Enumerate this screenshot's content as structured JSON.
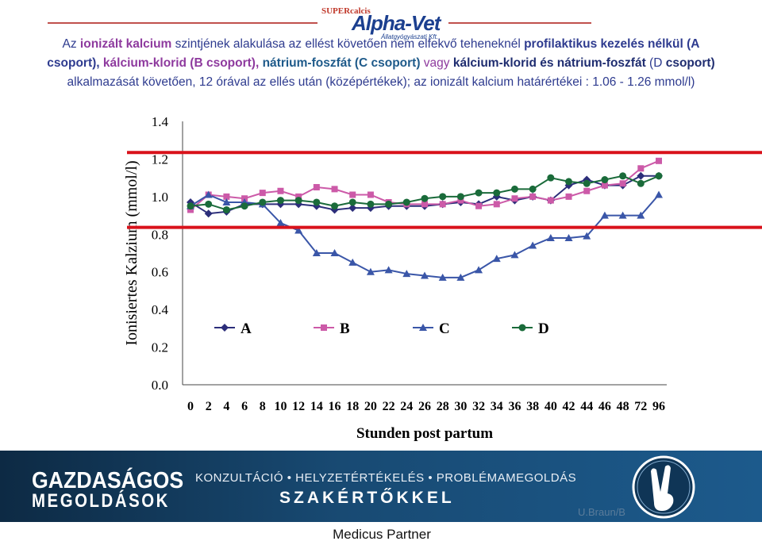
{
  "logo": {
    "small": "SUPERcalcis",
    "main": "Alpha-Vet",
    "sub": "Állatgyógyászati Kft."
  },
  "heading": {
    "p1": "Az ",
    "p2": "ionizált kalcium",
    "p3": " szintjének alakulása az ellést követően nem elfekvő teheneknél ",
    "p4": "profilaktikus kezelés nélkül (A csoport), ",
    "p5": "kálcium-klorid (B csoport), ",
    "p6": "nátrium-foszfát (C csoport)",
    "p7": " vagy ",
    "p8": "kálcium-klorid és nátrium-foszfát",
    "p9": " (D ",
    "p10": "csoport)",
    "p11": " alkalmazását követően, 12 órával az ellés után (középértékek); az ionizált kalcium határértékei : 1.06 - 1.26 mmol/l)"
  },
  "chart_data": {
    "type": "line",
    "title": "",
    "xlabel": "Stunden post partum",
    "ylabel": "Ionisiertes Kalzium (mmol/l)",
    "categories": [
      "0",
      "2",
      "4",
      "6",
      "8",
      "10",
      "12",
      "14",
      "16",
      "18",
      "20",
      "22",
      "24",
      "26",
      "28",
      "30",
      "32",
      "34",
      "36",
      "38",
      "40",
      "42",
      "44",
      "46",
      "48",
      "72",
      "96"
    ],
    "ylim": [
      0,
      1.4
    ],
    "yticks": [
      "0.0",
      "0.2",
      "0.4",
      "0.6",
      "0.8",
      "1.0",
      "1.2",
      "1.4"
    ],
    "grid": false,
    "legend_position": "inside-bottom",
    "reference_lines": [
      1.06,
      1.26
    ],
    "reference_color": "#d9121b",
    "series": [
      {
        "name": "A",
        "color": "#2c2e7a",
        "marker": "diamond",
        "values": [
          0.97,
          0.91,
          0.92,
          0.96,
          0.96,
          0.96,
          0.96,
          0.95,
          0.93,
          0.94,
          0.94,
          0.95,
          0.95,
          0.95,
          0.96,
          0.97,
          0.96,
          1.0,
          0.98,
          1.0,
          0.98,
          1.06,
          1.09,
          1.06,
          1.06,
          1.11,
          1.11
        ]
      },
      {
        "name": "B",
        "color": "#cc5aa8",
        "marker": "square",
        "values": [
          0.93,
          1.01,
          1.0,
          0.99,
          1.02,
          1.03,
          1.0,
          1.05,
          1.04,
          1.01,
          1.01,
          0.97,
          0.96,
          0.96,
          0.96,
          0.98,
          0.95,
          0.96,
          0.99,
          1.0,
          0.98,
          1.0,
          1.03,
          1.06,
          1.07,
          1.15,
          1.19
        ]
      },
      {
        "name": "C",
        "color": "#3a56a8",
        "marker": "triangle",
        "values": [
          0.95,
          1.01,
          0.97,
          0.97,
          0.96,
          0.86,
          0.82,
          0.7,
          0.7,
          0.65,
          0.6,
          0.61,
          0.59,
          0.58,
          0.57,
          0.57,
          0.61,
          0.67,
          0.69,
          0.74,
          0.78,
          0.78,
          0.79,
          0.9,
          0.9,
          0.9,
          1.01
        ]
      },
      {
        "name": "D",
        "color": "#1a6b3a",
        "marker": "circle",
        "values": [
          0.95,
          0.96,
          0.93,
          0.95,
          0.97,
          0.98,
          0.98,
          0.97,
          0.95,
          0.97,
          0.96,
          0.96,
          0.97,
          0.99,
          1.0,
          1.0,
          1.02,
          1.02,
          1.04,
          1.04,
          1.1,
          1.08,
          1.07,
          1.09,
          1.11,
          1.07,
          1.11
        ]
      }
    ]
  },
  "banner": {
    "title1": "GAZDASÁGOS",
    "title2": "MEGOLDÁSOK",
    "line1": "KONZULTÁCIÓ • HELYZETÉRTÉKELÉS • PROBLÉMAMEGOLDÁS",
    "line2": "SZAKÉRTŐKKEL",
    "author": "U.Braun/B"
  },
  "footer": "Medicus Partner"
}
